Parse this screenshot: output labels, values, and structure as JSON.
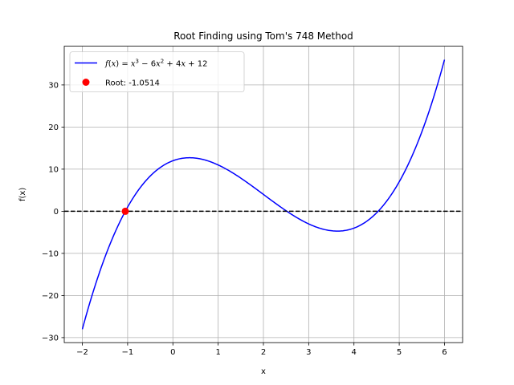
{
  "chart_data": {
    "type": "line",
    "title": "Root Finding using Tom's 748 Method",
    "xlabel": "x",
    "ylabel": "f(x)",
    "xlim": [
      -2.4,
      6.4
    ],
    "ylim": [
      -31.2,
      39.2
    ],
    "x_ticks": [
      -2,
      -1,
      0,
      1,
      2,
      3,
      4,
      5,
      6
    ],
    "x_tick_labels": [
      "−2",
      "−1",
      "0",
      "1",
      "2",
      "3",
      "4",
      "5",
      "6"
    ],
    "y_ticks": [
      -30,
      -20,
      -10,
      0,
      10,
      20,
      30
    ],
    "y_tick_labels": [
      "−30",
      "−20",
      "−10",
      "0",
      "10",
      "20",
      "30"
    ],
    "grid": true,
    "legend_position": "top-left",
    "function": {
      "coefficients": [
        1,
        -6,
        4,
        12
      ],
      "x_range": [
        -2,
        6
      ],
      "color": "#0000ff"
    },
    "series": [
      {
        "name": "f(x) = x³ − 6x² + 4x + 12",
        "color": "#0000ff",
        "style": "solid",
        "x": [
          -2,
          -1.5,
          -1,
          -0.5,
          0,
          0.5,
          1,
          1.5,
          2,
          2.5,
          3,
          3.5,
          4,
          4.5,
          5,
          5.5,
          6
        ],
        "y": [
          -28,
          -10.875,
          1,
          8.375,
          12,
          12.625,
          11,
          7.875,
          4,
          0.125,
          -3,
          -4.625,
          -4,
          -0.375,
          7,
          18.875,
          36
        ]
      },
      {
        "name": "y = 0",
        "color": "#000000",
        "style": "dashed",
        "y": 0
      },
      {
        "name": "Root: -1.0514",
        "color": "#ff0000",
        "style": "marker",
        "x": [
          -1.0514
        ],
        "y": [
          0
        ]
      }
    ],
    "legend": [
      {
        "label_parts": [
          "f",
          "(",
          "x",
          ") = ",
          "x",
          "3",
          " − 6",
          "x",
          "2",
          " + 4",
          "x",
          " + 12"
        ],
        "color": "#0000ff",
        "kind": "line"
      },
      {
        "label": "Root: -1.0514",
        "color": "#ff0000",
        "kind": "marker"
      }
    ]
  }
}
